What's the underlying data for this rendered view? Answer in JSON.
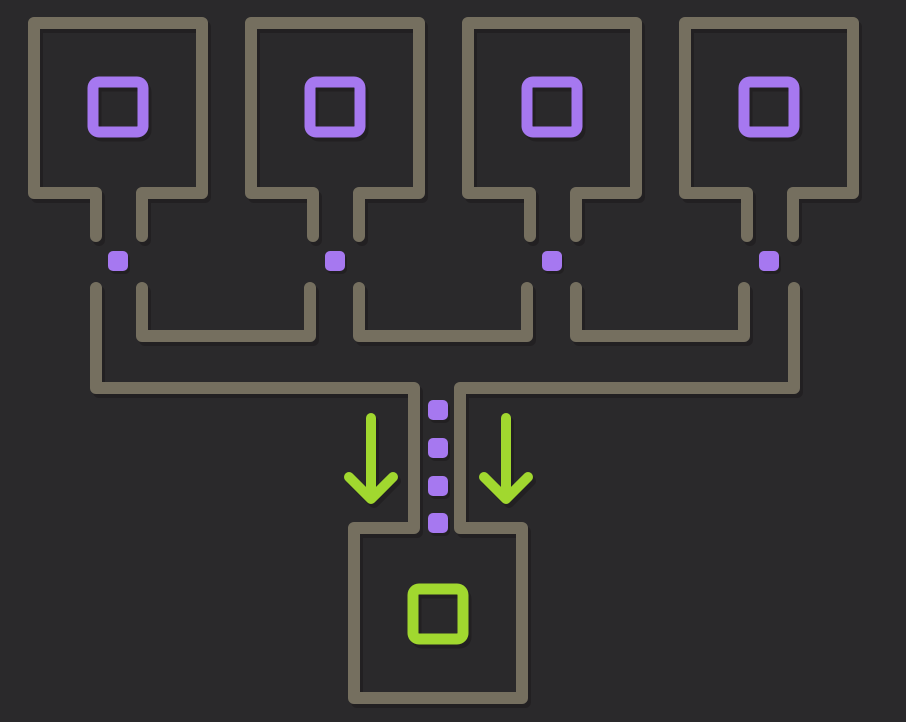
{
  "colors": {
    "background": "#2a292b",
    "wall": "#756f5f",
    "wall_shadow": "#1b1a1c",
    "source_block": "#a678f0",
    "goal_block": "#a1d82f",
    "flow_arrow": "#a1d82f",
    "packet": "#a678f0"
  },
  "puzzle": {
    "source_rooms": [
      {
        "id": "room-1",
        "block": "source-block"
      },
      {
        "id": "room-2",
        "block": "source-block"
      },
      {
        "id": "room-3",
        "block": "source-block"
      },
      {
        "id": "room-4",
        "block": "source-block"
      }
    ],
    "source_count": 4,
    "goal_room": {
      "id": "goal-room",
      "block": "goal-block"
    },
    "funnel_packets": 4,
    "flow_direction": "down"
  }
}
